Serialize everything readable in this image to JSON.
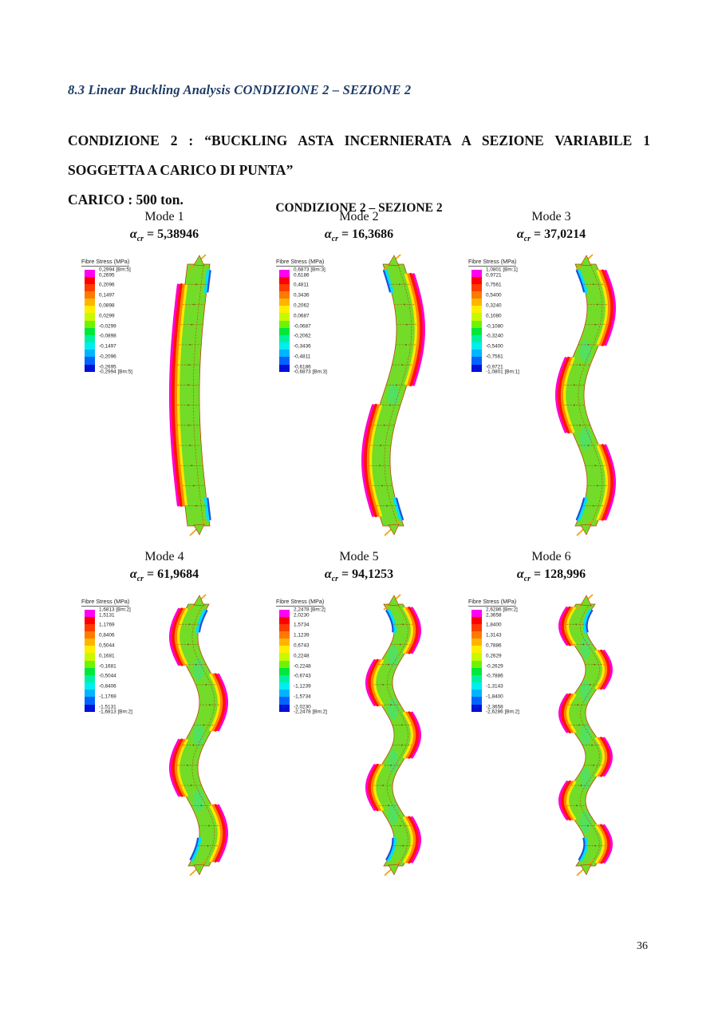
{
  "page": {
    "section_heading": "8.3 Linear Buckling Analysis CONDIZIONE 2 – SEZIONE 2",
    "statement_line1": "CONDIZIONE 2 : “BUCKLING ASTA INCERNIERATA A SEZIONE VARIABILE 1",
    "statement_line2": "SOGGETTA A CARICO DI PUNTA”",
    "carico": "CARICO : 500 ton.",
    "figure_title": "CONDIZIONE 2 – SEZIONE 2",
    "page_number": "36",
    "heading_color": "#1e3a66"
  },
  "legend": {
    "title": "Fibre Stress (MPa)"
  },
  "modes": [
    {
      "label": "Mode 1",
      "alpha_symbol": "α",
      "alpha_sub": "cr",
      "alpha_value": "= 5,38946",
      "legend_values": [
        "0,2994 [Bm:5]",
        "0,2695",
        "0,2096",
        "0,1497",
        "0,0898",
        "0,0299",
        "-0,0299",
        "-0,0898",
        "-0,1497",
        "-0,2096",
        "-0,2695",
        "-0,2994 [Bm:5]"
      ],
      "shape": {
        "half_waves": 1,
        "bow": "left"
      }
    },
    {
      "label": "Mode 2",
      "alpha_symbol": "α",
      "alpha_sub": "cr",
      "alpha_value": "= 16,3686",
      "legend_values": [
        "0,6873 [Bm:3]",
        "0,6186",
        "0,4811",
        "0,3436",
        "0,2062",
        "0,0687",
        "-0,0687",
        "-0,2062",
        "-0,3436",
        "-0,4811",
        "-0,6186",
        "-0,6873 [Bm:3]"
      ],
      "shape": {
        "half_waves": 2,
        "bow": "right"
      }
    },
    {
      "label": "Mode 3",
      "alpha_symbol": "α",
      "alpha_sub": "cr",
      "alpha_value": "= 37,0214",
      "legend_values": [
        "1,0801 [Bm:1]",
        "0,9721",
        "0,7561",
        "0,5400",
        "0,3240",
        "0,1080",
        "-0,1080",
        "-0,3240",
        "-0,5400",
        "-0,7561",
        "-0,9721",
        "-1,0801 [Bm:1]"
      ],
      "shape": {
        "half_waves": 3,
        "bow": "right"
      }
    },
    {
      "label": "Mode 4",
      "alpha_symbol": "α",
      "alpha_sub": "cr",
      "alpha_value": "= 61,9684",
      "legend_values": [
        "1,6813 [Bm:2]",
        "1,5131",
        "1,1769",
        "0,8406",
        "0,5044",
        "0,1681",
        "-0,1681",
        "-0,5044",
        "-0,8406",
        "-1,1769",
        "-1,5131",
        "-1,6813 [Bm:2]"
      ],
      "shape": {
        "half_waves": 4,
        "bow": "left"
      }
    },
    {
      "label": "Mode 5",
      "alpha_symbol": "α",
      "alpha_sub": "cr",
      "alpha_value": "= 94,1253",
      "legend_values": [
        "2,2478 [Bm:2]",
        "2,0230",
        "1,5734",
        "1,1239",
        "0,6743",
        "0,2248",
        "-0,2248",
        "-0,6743",
        "-1,1239",
        "-1,5734",
        "-2,0230",
        "-2,2478 [Bm:2]"
      ],
      "shape": {
        "half_waves": 5,
        "bow": "right"
      }
    },
    {
      "label": "Mode 6",
      "alpha_symbol": "α",
      "alpha_sub": "cr",
      "alpha_value": "= 128,996",
      "legend_values": [
        "2,6286 [Bm:2]",
        "2,3658",
        "1,8400",
        "1,3143",
        "0,7886",
        "0,2629",
        "-0,2629",
        "-0,7886",
        "-1,3143",
        "-1,8400",
        "-2,3658",
        "-2,6286 [Bm:2]"
      ],
      "shape": {
        "half_waves": 6,
        "bow": "left"
      }
    }
  ]
}
